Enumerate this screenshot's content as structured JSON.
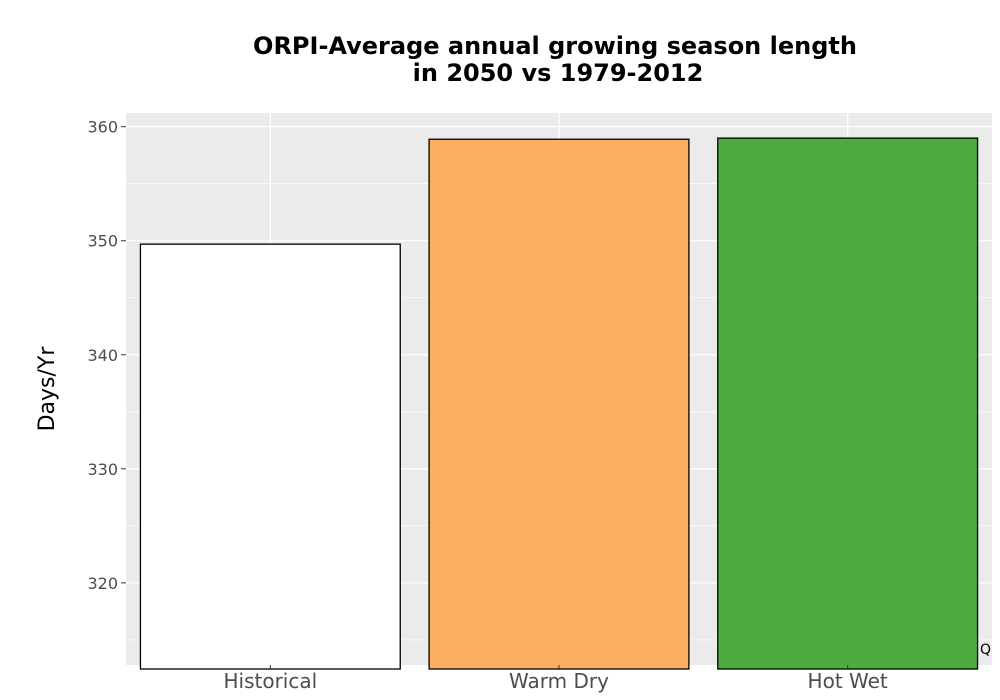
{
  "chart_data": {
    "type": "bar",
    "title_line1": "ORPI-Average annual growing season length",
    "title_line2": "in 2050 vs 1979-2012",
    "xlabel": "",
    "ylabel": "Days/Yr",
    "categories": [
      "Historical",
      "Warm Dry",
      "Hot Wet"
    ],
    "values": [
      349.7,
      358.9,
      359.0
    ],
    "colors": [
      "#ffffff",
      "#fdae61",
      "#4dac40"
    ],
    "ylim": [
      312.8,
      361.2
    ],
    "yticks": [
      320,
      330,
      340,
      350,
      360
    ],
    "grid": true,
    "corner_mark": "Q"
  }
}
